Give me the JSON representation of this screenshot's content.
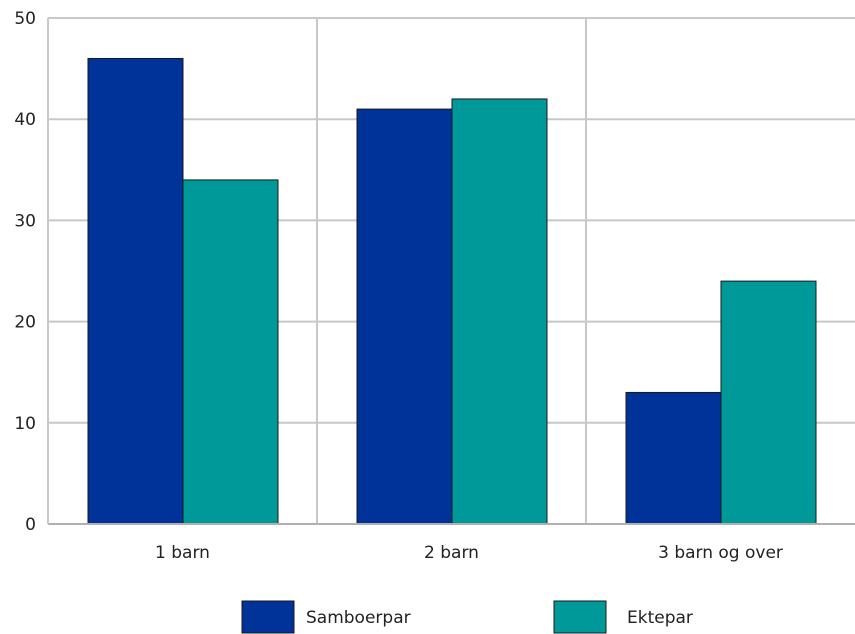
{
  "chart_data": {
    "type": "bar",
    "categories": [
      "1 barn",
      "2 barn",
      "3 barn og over"
    ],
    "series": [
      {
        "name": "Samboerpar",
        "values": [
          46,
          41,
          13
        ],
        "color": "#003399"
      },
      {
        "name": "Ektepar",
        "values": [
          34,
          42,
          24
        ],
        "color": "#009999"
      }
    ],
    "ylim": [
      0,
      50
    ],
    "yticks": [
      0,
      10,
      20,
      30,
      40,
      50
    ],
    "grid": true,
    "legend_position": "bottom"
  }
}
